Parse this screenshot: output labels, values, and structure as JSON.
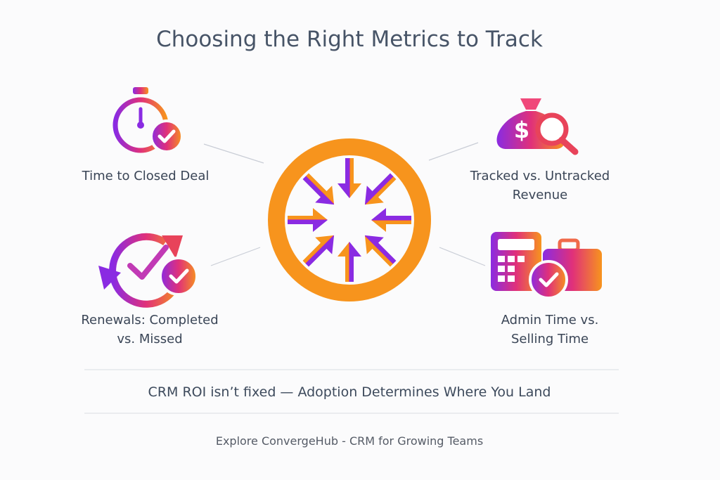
{
  "title": "Choosing the Right Metrics to Track",
  "metrics": [
    {
      "lines": [
        "Time to Closed Deal"
      ]
    },
    {
      "lines": [
        "Tracked vs. Untracked",
        "Revenue"
      ]
    },
    {
      "lines": [
        "Renewals: Completed",
        "vs. Missed"
      ]
    },
    {
      "lines": [
        "Admin Time vs.",
        "Selling Time"
      ]
    }
  ],
  "tagline": "CRM ROI isn’t fixed — Adoption Determines Where You Land",
  "footer": "Explore ConvergeHub - CRM for Growing Teams"
}
